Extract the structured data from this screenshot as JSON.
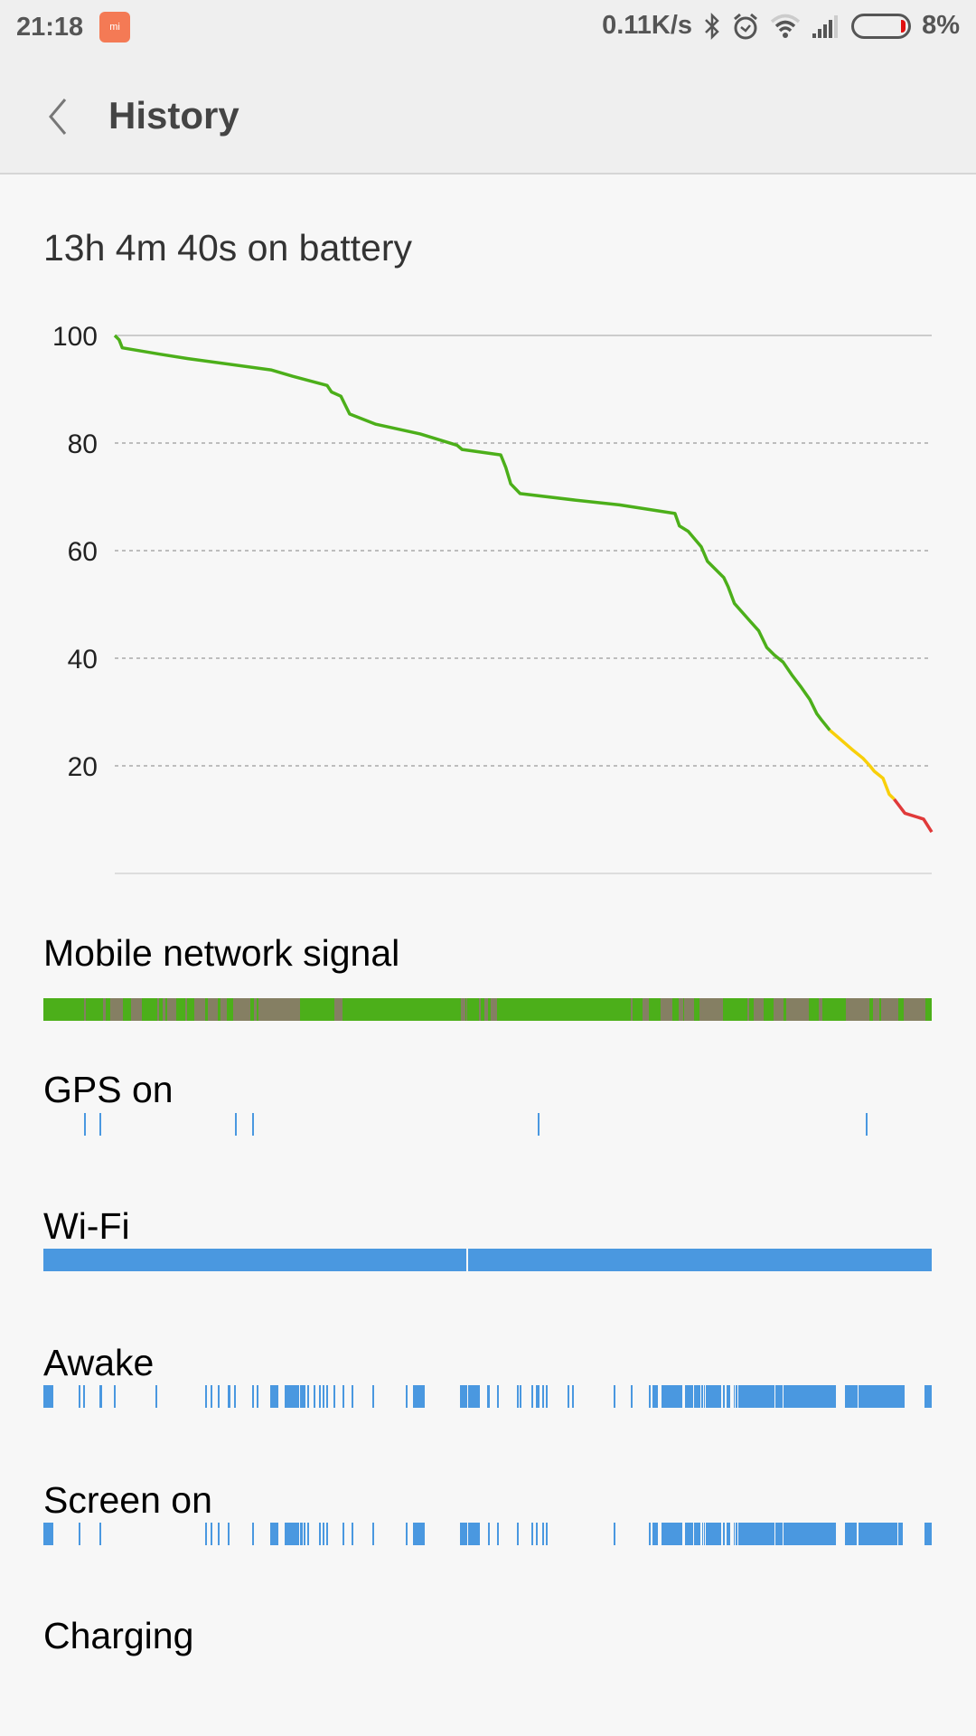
{
  "status_bar": {
    "time": "21:18",
    "app_icon": "mi-icon",
    "net_speed": "0.11K/s",
    "icons": [
      "bluetooth-icon",
      "alarm-icon",
      "wifi-icon",
      "signal-icon"
    ],
    "battery_percent": "8%",
    "battery_level": 8
  },
  "header": {
    "title": "History",
    "back_icon": "chevron-left-icon"
  },
  "summary": "13h 4m 40s on battery",
  "colors": {
    "green": "#4caf1a",
    "yellow": "#f8cf0a",
    "red": "#e03a3a",
    "blue": "#4a98e0",
    "signal_poor": "#857f63"
  },
  "chart_data": {
    "type": "line",
    "xlabel": "",
    "ylabel": "",
    "ylim": [
      0,
      100
    ],
    "xlim_hours": [
      0,
      13.08
    ],
    "yticks": [
      100,
      80,
      60,
      40,
      20
    ],
    "grid": true,
    "thresholds": {
      "yellow_below": 28.6,
      "red_below": 14.7
    },
    "x_hours": [
      0,
      0.07,
      0.12,
      0.73,
      1.17,
      2.5,
      2.85,
      3.4,
      3.47,
      3.62,
      3.76,
      4.18,
      4.89,
      5.48,
      5.56,
      6.18,
      6.26,
      6.34,
      6.49,
      7.37,
      8.08,
      8.97,
      9.04,
      9.18,
      9.39,
      9.49,
      9.75,
      9.82,
      9.92,
      10.17,
      10.31,
      10.44,
      10.56,
      10.7,
      10.84,
      10.99,
      11.13,
      11.24,
      11.31,
      11.45,
      11.62,
      11.8,
      11.98,
      12.09,
      12.16,
      12.3,
      12.4,
      12.48,
      12.65,
      12.95,
      13.08
    ],
    "battery_percent": [
      100,
      99.2,
      97.7,
      96.5,
      95.7,
      93.6,
      92.4,
      90.7,
      89.5,
      88.7,
      85.4,
      83.5,
      81.7,
      79.6,
      78.8,
      77.8,
      75.5,
      72.4,
      70.6,
      69.4,
      68.5,
      66.9,
      64.6,
      63.6,
      60.7,
      58,
      55,
      53.3,
      50.2,
      46.9,
      45.1,
      42,
      40.6,
      39.3,
      36.9,
      34.6,
      32.3,
      29.7,
      28.6,
      26.6,
      24.9,
      23.1,
      21.4,
      20,
      19,
      17.7,
      14.7,
      13.8,
      11.2,
      10.1,
      7.7
    ]
  },
  "timelines_note_unit": "percent of on-battery period",
  "sections": [
    {
      "label": "Mobile network signal",
      "kind": "signal",
      "poor_intervals": [
        [
          4.55,
          4.75
        ],
        [
          6.71,
          7.05
        ],
        [
          7.5,
          8.92
        ],
        [
          9.9,
          11.06
        ],
        [
          12.85,
          12.99
        ],
        [
          13.43,
          13.76
        ],
        [
          13.97,
          14.98
        ],
        [
          16,
          16.2
        ],
        [
          17.02,
          18.24
        ],
        [
          18.51,
          19.66
        ],
        [
          19.94,
          20.68
        ],
        [
          21.39,
          23.27
        ],
        [
          23.73,
          24.01
        ],
        [
          24.21,
          28.89
        ],
        [
          32.76,
          33.7
        ],
        [
          47,
          47.51
        ],
        [
          47.61,
          47.74
        ],
        [
          49.03,
          49.21
        ],
        [
          49.64,
          50.05
        ],
        [
          50.32,
          51.07
        ],
        [
          66.12,
          66.33
        ],
        [
          67.48,
          67.62
        ],
        [
          67.68,
          68.16
        ],
        [
          69.51,
          70.8
        ],
        [
          71.48,
          72.02
        ],
        [
          72.16,
          73.25
        ],
        [
          73.86,
          76.5
        ],
        [
          79.28,
          79.48
        ],
        [
          79.96,
          81.11
        ],
        [
          82.2,
          83.35
        ],
        [
          83.62,
          86.19
        ],
        [
          87.28,
          87.69
        ],
        [
          90.33,
          92.98
        ],
        [
          93.39,
          94.13
        ],
        [
          94.3,
          96.24
        ],
        [
          96.85,
          99.29
        ]
      ]
    },
    {
      "label": "GPS on",
      "kind": "ticks",
      "intervals": [
        [
          4.58,
          4.78
        ],
        [
          6.31,
          6.51
        ],
        [
          21.57,
          21.77
        ],
        [
          23.5,
          23.7
        ],
        [
          55.65,
          55.85
        ],
        [
          92.57,
          92.77
        ]
      ]
    },
    {
      "label": "Wi-Fi",
      "kind": "bar",
      "intervals": [
        [
          0,
          47.6
        ],
        [
          47.8,
          100
        ]
      ]
    },
    {
      "label": "Awake",
      "kind": "bar",
      "intervals": [
        [
          0,
          1.12
        ],
        [
          4,
          4.2
        ],
        [
          4.5,
          4.7
        ],
        [
          6.31,
          6.58
        ],
        [
          7.97,
          8.17
        ],
        [
          12.65,
          12.85
        ],
        [
          18.24,
          18.44
        ],
        [
          18.82,
          19.02
        ],
        [
          19.66,
          19.86
        ],
        [
          20.75,
          21.06
        ],
        [
          21.46,
          21.66
        ],
        [
          23.53,
          23.73
        ],
        [
          24.04,
          24.24
        ],
        [
          25.53,
          26.42
        ],
        [
          27.16,
          28.76
        ],
        [
          28.86,
          29.47
        ],
        [
          29.74,
          29.94
        ],
        [
          30.45,
          30.65
        ],
        [
          31.06,
          31.26
        ],
        [
          31.46,
          31.67
        ],
        [
          31.81,
          32.01
        ],
        [
          32.69,
          32.89
        ],
        [
          33.7,
          33.88
        ],
        [
          34.72,
          34.92
        ],
        [
          37.06,
          37.26
        ],
        [
          40.82,
          41.02
        ],
        [
          41.61,
          42.93
        ],
        [
          46.9,
          47.71
        ],
        [
          47.81,
          49.14
        ],
        [
          49.95,
          50.22
        ],
        [
          51.07,
          51.27
        ],
        [
          53.31,
          53.51
        ],
        [
          53.64,
          53.84
        ],
        [
          54.96,
          55.16
        ],
        [
          55.44,
          55.85
        ],
        [
          56.18,
          56.38
        ],
        [
          56.59,
          56.79
        ],
        [
          59.03,
          59.23
        ],
        [
          59.54,
          59.74
        ],
        [
          64.22,
          64.42
        ],
        [
          66.15,
          66.35
        ],
        [
          68.19,
          68.39
        ],
        [
          68.57,
          69.18
        ],
        [
          69.61,
          69.81
        ],
        [
          69.79,
          71.92
        ],
        [
          72.23,
          73.11
        ],
        [
          73.25,
          73.96
        ],
        [
          74.06,
          74.26
        ],
        [
          74.36,
          74.5
        ],
        [
          74.57,
          76.3
        ],
        [
          76.5,
          76.7
        ],
        [
          76.91,
          77.31
        ],
        [
          77.72,
          77.82
        ],
        [
          77.92,
          78.13
        ],
        [
          78.23,
          82.3
        ],
        [
          82.4,
          83.21
        ],
        [
          83.32,
          89.22
        ],
        [
          90.23,
          91.66
        ],
        [
          91.76,
          96.95
        ],
        [
          99.19,
          100
        ]
      ]
    },
    {
      "label": "Screen on",
      "kind": "bar",
      "intervals": [
        [
          0,
          1.12
        ],
        [
          4,
          4.2
        ],
        [
          6.31,
          6.48
        ],
        [
          18.24,
          18.44
        ],
        [
          18.82,
          19.02
        ],
        [
          19.66,
          19.86
        ],
        [
          20.75,
          20.92
        ],
        [
          23.53,
          23.73
        ],
        [
          25.53,
          26.42
        ],
        [
          27.16,
          28.76
        ],
        [
          28.86,
          29.2
        ],
        [
          29.33,
          29.5
        ],
        [
          29.74,
          29.94
        ],
        [
          31.06,
          31.26
        ],
        [
          31.46,
          31.66
        ],
        [
          31.81,
          32.01
        ],
        [
          33.7,
          33.88
        ],
        [
          34.72,
          34.92
        ],
        [
          37.06,
          37.26
        ],
        [
          40.82,
          41.02
        ],
        [
          41.61,
          42.93
        ],
        [
          46.9,
          47.71
        ],
        [
          47.81,
          49.14
        ],
        [
          50.05,
          50.22
        ],
        [
          51.07,
          51.27
        ],
        [
          53.31,
          53.51
        ],
        [
          54.96,
          55.16
        ],
        [
          55.44,
          55.65
        ],
        [
          56.18,
          56.38
        ],
        [
          56.59,
          56.79
        ],
        [
          64.22,
          64.42
        ],
        [
          68.19,
          68.39
        ],
        [
          68.57,
          69.18
        ],
        [
          69.61,
          69.81
        ],
        [
          69.79,
          71.92
        ],
        [
          72.23,
          73.11
        ],
        [
          73.25,
          73.96
        ],
        [
          74.16,
          74.3
        ],
        [
          74.36,
          74.5
        ],
        [
          74.57,
          76.3
        ],
        [
          76.5,
          76.7
        ],
        [
          76.91,
          77.31
        ],
        [
          77.72,
          77.82
        ],
        [
          77.92,
          78.13
        ],
        [
          78.23,
          82.3
        ],
        [
          82.4,
          83.21
        ],
        [
          83.32,
          89.22
        ],
        [
          90.23,
          91.56
        ],
        [
          91.76,
          96.13
        ],
        [
          96.24,
          96.74
        ],
        [
          99.19,
          100
        ]
      ]
    },
    {
      "label": "Charging",
      "kind": "bar",
      "intervals": []
    }
  ]
}
